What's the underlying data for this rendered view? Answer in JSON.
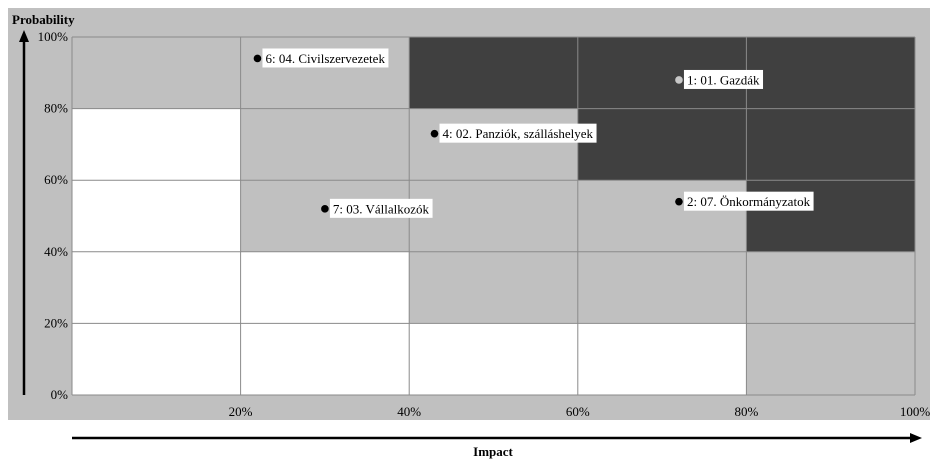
{
  "chart_data": {
    "type": "scatter",
    "title": "",
    "ylabel": "Probability",
    "xlabel": "Impact",
    "xlim": [
      0,
      100
    ],
    "ylim": [
      0,
      100
    ],
    "x_ticks": [
      "20%",
      "40%",
      "60%",
      "80%",
      "100%"
    ],
    "y_ticks": [
      "0%",
      "20%",
      "40%",
      "60%",
      "80%",
      "100%"
    ],
    "grid": true,
    "zones": {
      "colors": {
        "low": "#ffffff",
        "medium": "#c0c0c0",
        "high": "#404040"
      },
      "rows_top_to_bottom": [
        [
          "medium",
          "medium",
          "high",
          "high",
          "high"
        ],
        [
          "low",
          "medium",
          "medium",
          "high",
          "high"
        ],
        [
          "low",
          "medium",
          "medium",
          "medium",
          "high"
        ],
        [
          "low",
          "low",
          "medium",
          "medium",
          "medium"
        ],
        [
          "low",
          "low",
          "low",
          "low",
          "medium"
        ]
      ]
    },
    "points": [
      {
        "label": "6: 04. Civilszervezetek",
        "x": 22,
        "y": 94,
        "color": "#000000"
      },
      {
        "label": "1: 01. Gazdák",
        "x": 72,
        "y": 88,
        "color": "#c8c8c8"
      },
      {
        "label": "4: 02. Panziók, szálláshelyek",
        "x": 43,
        "y": 73,
        "color": "#000000"
      },
      {
        "label": "7: 03. Vállalkozók",
        "x": 30,
        "y": 52,
        "color": "#000000"
      },
      {
        "label": "2: 07. Önkormányzatok",
        "x": 72,
        "y": 54,
        "color": "#000000"
      }
    ]
  }
}
